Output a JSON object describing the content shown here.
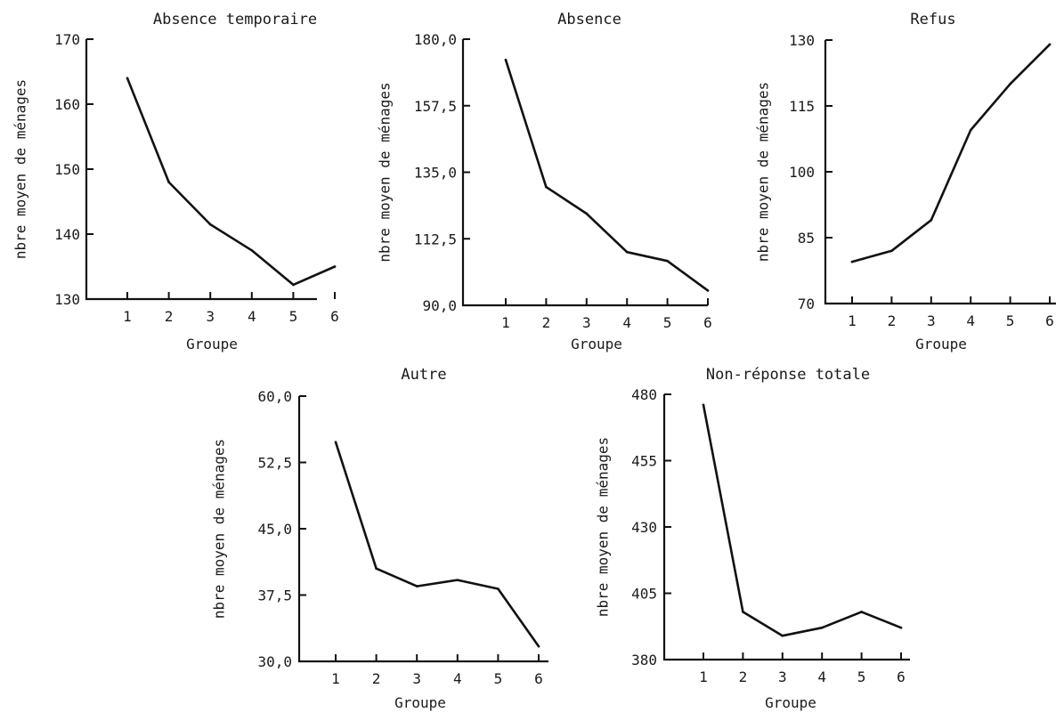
{
  "xlabel": "Groupe",
  "ylabel": "nbre moyen de ménages",
  "chart_data": [
    {
      "type": "line",
      "title": "Absence temporaire",
      "xlabel": "Groupe",
      "ylabel": "nbre moyen de ménages",
      "x": [
        1,
        2,
        3,
        4,
        5,
        6
      ],
      "values": [
        164,
        148,
        141.5,
        137.5,
        132.2,
        135
      ],
      "ylim": [
        130,
        170
      ],
      "yticks": [
        "130",
        "140",
        "150",
        "160",
        "170"
      ],
      "yticks_values": [
        130,
        140,
        150,
        160,
        170
      ],
      "grid": false
    },
    {
      "type": "line",
      "title": "Absence",
      "xlabel": "Groupe",
      "ylabel": "nbre moyen de ménages",
      "x": [
        1,
        2,
        3,
        4,
        5,
        6
      ],
      "values": [
        173,
        130,
        121,
        108,
        105,
        95
      ],
      "ylim": [
        90,
        180
      ],
      "yticks": [
        "90,0",
        "112,5",
        "135,0",
        "157,5",
        "180,0"
      ],
      "yticks_values": [
        90,
        112.5,
        135,
        157.5,
        180
      ],
      "grid": false
    },
    {
      "type": "line",
      "title": "Refus",
      "xlabel": "Groupe",
      "ylabel": "nbre moyen de ménages",
      "x": [
        1,
        2,
        3,
        4,
        5,
        6
      ],
      "values": [
        79.5,
        82,
        89,
        109.5,
        120,
        129
      ],
      "ylim": [
        70,
        130
      ],
      "yticks": [
        "70",
        "85",
        "100",
        "115",
        "130"
      ],
      "yticks_values": [
        70,
        85,
        100,
        115,
        130
      ],
      "grid": false
    },
    {
      "type": "line",
      "title": "Autre",
      "xlabel": "Groupe",
      "ylabel": "nbre moyen de ménages",
      "x": [
        1,
        2,
        3,
        4,
        5,
        6
      ],
      "values": [
        54.8,
        40.5,
        38.5,
        39.2,
        38.2,
        31.7
      ],
      "ylim": [
        30,
        60
      ],
      "yticks": [
        "30,0",
        "37,5",
        "45,0",
        "52,5",
        "60,0"
      ],
      "yticks_values": [
        30,
        37.5,
        45,
        52.5,
        60
      ],
      "grid": false
    },
    {
      "type": "line",
      "title": "Non-réponse totale",
      "xlabel": "Groupe",
      "ylabel": "nbre moyen de ménages",
      "x": [
        1,
        2,
        3,
        4,
        5,
        6
      ],
      "values": [
        476,
        398,
        389,
        392,
        398,
        392
      ],
      "ylim": [
        380,
        480
      ],
      "yticks": [
        "380",
        "405",
        "430",
        "455",
        "480"
      ],
      "yticks_values": [
        380,
        405,
        430,
        455,
        480
      ],
      "grid": false
    }
  ]
}
